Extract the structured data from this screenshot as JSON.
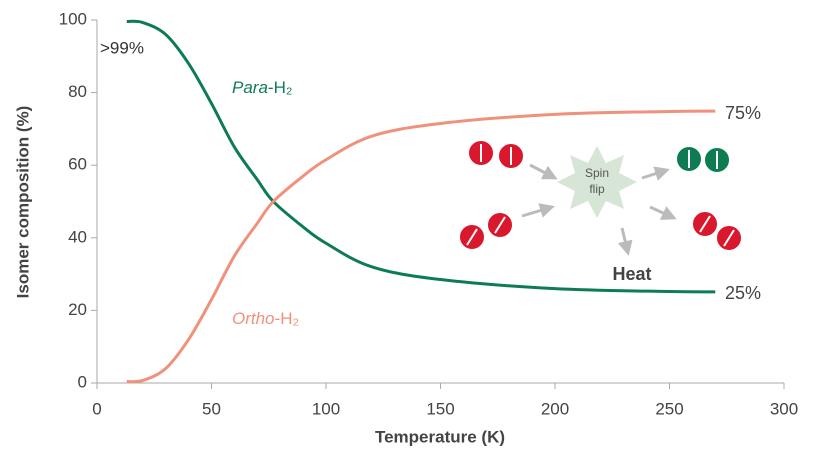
{
  "chart_data": {
    "type": "line",
    "x_label": "Temperature (K)",
    "y_label": "Isomer composition (%)",
    "x": [
      13,
      20,
      30,
      40,
      50,
      60,
      70,
      77,
      90,
      100,
      120,
      150,
      200,
      250,
      270
    ],
    "series": [
      {
        "name": [
          "Para",
          "-H₂"
        ],
        "color": "#0e7c52",
        "values": [
          99.6,
          99.3,
          96,
          88,
          77,
          65,
          56,
          50,
          43,
          38.5,
          32,
          28.5,
          26,
          25.2,
          25.1
        ]
      },
      {
        "name": [
          "Ortho",
          "-H₂"
        ],
        "color": "#f0917b",
        "values": [
          0.4,
          0.7,
          4,
          12,
          23,
          35,
          44,
          50,
          57,
          61.5,
          68,
          71.5,
          74,
          74.8,
          74.9
        ]
      }
    ],
    "xlim": [
      0,
      300
    ],
    "xticks": [
      0,
      50,
      100,
      150,
      200,
      250,
      300
    ],
    "ylim": [
      0,
      100
    ],
    "yticks": [
      0,
      20,
      40,
      60,
      80,
      100
    ],
    "annotations": {
      "start": ">99%",
      "para_end": "25%",
      "ortho_end": "75%",
      "spin_flip": [
        "Spin",
        "flip"
      ],
      "heat": "Heat"
    }
  }
}
